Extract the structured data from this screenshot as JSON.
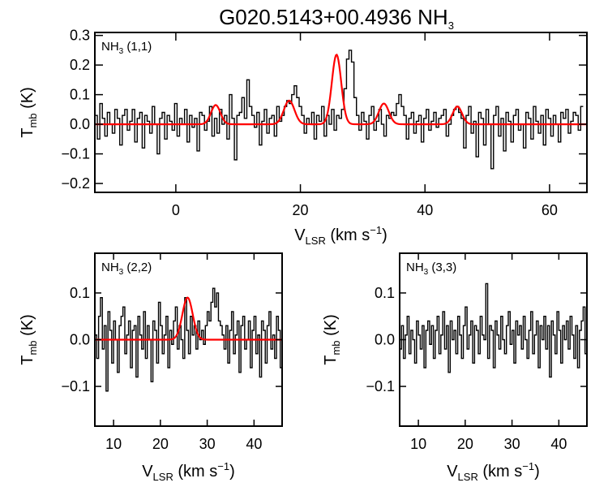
{
  "figure": {
    "title_main": "G020.5143+00.4936 NH",
    "title_sub": "3"
  },
  "colors": {
    "data": "#000000",
    "fit": "#ff0000",
    "axis": "#000000"
  },
  "chart_data": [
    {
      "id": "nh3-11",
      "type": "line",
      "panel_label": {
        "main": "NH",
        "sub": "3",
        "rest": " (1,1)"
      },
      "xlabel": {
        "main": "V",
        "sub": "LSR",
        "rest": " (km s",
        "sup": "−1",
        "end": ")"
      },
      "ylabel": {
        "main": "T",
        "sub": "mb",
        "rest": " (K)"
      },
      "xlim": [
        -13,
        66
      ],
      "ylim": [
        -0.23,
        0.31
      ],
      "xticks": [
        0,
        20,
        40,
        60
      ],
      "yticks": [
        -0.2,
        -0.1,
        0.0,
        0.1,
        0.2,
        0.3
      ],
      "ytick_labels": [
        "−0.2",
        "−0.1",
        "0.0",
        "0.1",
        "0.2",
        "0.3"
      ],
      "xtick_labels": [
        "0",
        "20",
        "40",
        "60"
      ],
      "series": [
        {
          "name": "observed spectrum",
          "style": "histogram",
          "x_start": -13,
          "x_step": 0.4,
          "values": [
            0.03,
            -0.05,
            0.07,
            0.02,
            -0.04,
            0.04,
            0.0,
            -0.03,
            0.05,
            0.02,
            -0.07,
            0.03,
            0.05,
            -0.02,
            0.01,
            0.05,
            -0.06,
            0.02,
            0.04,
            -0.08,
            0.03,
            0.01,
            -0.03,
            0.06,
            0.0,
            -0.1,
            0.02,
            0.04,
            -0.05,
            0.03,
            0.01,
            -0.02,
            0.07,
            -0.04,
            0.02,
            0.0,
            0.05,
            -0.06,
            0.03,
            -0.01,
            0.02,
            -0.09,
            0.04,
            0.03,
            -0.02,
            0.01,
            0.06,
            -0.04,
            0.02,
            -0.03,
            0.05,
            0.0,
            0.03,
            -0.05,
            0.1,
            0.02,
            -0.12,
            0.03,
            0.04,
            0.09,
            0.02,
            0.15,
            0.06,
            0.03,
            -0.01,
            0.04,
            -0.07,
            0.01,
            0.05,
            -0.03,
            0.02,
            0.03,
            -0.04,
            0.06,
            0.01,
            0.03,
            0.06,
            0.08,
            0.07,
            0.1,
            0.13,
            0.09,
            0.06,
            0.03,
            -0.03,
            0.02,
            0.0,
            0.04,
            -0.05,
            0.03,
            0.01,
            0.06,
            -0.04,
            0.03,
            0.0,
            0.05,
            -0.02,
            0.03,
            0.02,
            0.05,
            0.12,
            0.22,
            0.25,
            0.21,
            0.09,
            0.03,
            -0.02,
            0.04,
            0.01,
            -0.05,
            0.03,
            0.06,
            -0.02,
            0.01,
            0.05,
            0.0,
            -0.04,
            0.03,
            0.02,
            0.04,
            0.03,
            0.07,
            0.1,
            0.06,
            0.03,
            -0.05,
            0.02,
            0.04,
            -0.03,
            0.01,
            0.03,
            -0.06,
            0.02,
            0.05,
            -0.02,
            0.01,
            0.04,
            -0.01,
            0.02,
            0.03,
            0.05,
            -0.04,
            0.0,
            0.03,
            0.05,
            0.06,
            0.04,
            0.02,
            -0.08,
            0.03,
            0.06,
            -0.03,
            0.01,
            -0.11,
            0.04,
            0.02,
            -0.07,
            0.05,
            0.0,
            -0.15,
            0.03,
            0.06,
            -0.04,
            0.02,
            -0.09,
            0.04,
            0.01,
            -0.06,
            0.03,
            0.05,
            -0.02,
            0.0,
            -0.08,
            0.04,
            0.02,
            -0.05,
            0.06,
            0.01,
            -0.03,
            0.03,
            -0.07,
            0.05,
            0.02,
            -0.04,
            0.03,
            0.0,
            -0.06,
            0.04,
            0.02,
            0.05,
            -0.03,
            0.01,
            0.04,
            0.03,
            -0.02,
            0.06
          ]
        },
        {
          "name": "hyperfine fit",
          "style": "gaussians",
          "components": [
            {
              "center": 6.4,
              "amp": 0.065,
              "sigma": 0.75
            },
            {
              "center": 18.2,
              "amp": 0.08,
              "sigma": 0.85
            },
            {
              "center": 25.8,
              "amp": 0.235,
              "sigma": 0.75
            },
            {
              "center": 33.4,
              "amp": 0.07,
              "sigma": 0.8
            },
            {
              "center": 45.2,
              "amp": 0.06,
              "sigma": 0.75
            }
          ]
        }
      ]
    },
    {
      "id": "nh3-22",
      "type": "line",
      "panel_label": {
        "main": "NH",
        "sub": "3",
        "rest": " (2,2)"
      },
      "xlabel": {
        "main": "V",
        "sub": "LSR",
        "rest": " (km s",
        "sup": "−1",
        "end": ")"
      },
      "ylabel": {
        "main": "T",
        "sub": "mb",
        "rest": " (K)"
      },
      "xlim": [
        6,
        46
      ],
      "ylim": [
        -0.185,
        0.185
      ],
      "xticks": [
        10,
        20,
        30,
        40
      ],
      "yticks": [
        -0.1,
        0.0,
        0.1
      ],
      "ytick_labels": [
        "−0.1",
        "0.0",
        "0.1"
      ],
      "xtick_labels": [
        "10",
        "20",
        "30",
        "40"
      ],
      "series": [
        {
          "name": "observed spectrum",
          "style": "histogram",
          "x_start": 6,
          "x_step": 0.4,
          "values": [
            0.01,
            -0.04,
            0.05,
            0.09,
            -0.02,
            0.03,
            -0.11,
            0.06,
            0.02,
            -0.05,
            0.04,
            0.0,
            -0.07,
            0.03,
            0.05,
            0.07,
            -0.03,
            0.01,
            0.04,
            -0.06,
            0.02,
            0.03,
            -0.08,
            0.05,
            0.01,
            -0.02,
            0.06,
            -0.04,
            0.03,
            0.0,
            -0.09,
            0.04,
            0.02,
            -0.05,
            0.08,
            0.03,
            -0.03,
            0.01,
            0.05,
            -0.06,
            0.02,
            -0.01,
            0.04,
            0.07,
            -0.02,
            0.03,
            0.0,
            -0.04,
            0.09,
            0.02,
            -0.03,
            0.05,
            0.01,
            0.03,
            -0.02,
            0.04,
            0.0,
            0.02,
            -0.01,
            0.03,
            0.06,
            0.04,
            0.08,
            0.11,
            0.07,
            0.1,
            0.04,
            0.03,
            0.01,
            -0.02,
            0.03,
            -0.05,
            0.02,
            0.06,
            -0.03,
            0.01,
            0.04,
            -0.07,
            0.03,
            0.05,
            -0.02,
            0.0,
            0.04,
            -0.06,
            0.02,
            0.05,
            -0.03,
            0.01,
            -0.08,
            0.04,
            0.02,
            -0.05,
            0.03,
            0.06,
            -0.02,
            0.01,
            -0.04,
            0.05,
            0.02,
            -0.06
          ]
        },
        {
          "name": "gaussian fit",
          "style": "gaussians",
          "components": [
            {
              "center": 25.8,
              "amp": 0.09,
              "sigma": 1.1
            }
          ]
        }
      ]
    },
    {
      "id": "nh3-33",
      "type": "line",
      "panel_label": {
        "main": "NH",
        "sub": "3",
        "rest": " (3,3)"
      },
      "xlabel": {
        "main": "V",
        "sub": "LSR",
        "rest": " (km s",
        "sup": "−1",
        "end": ")"
      },
      "ylabel": {
        "main": "T",
        "sub": "mb",
        "rest": " (K)"
      },
      "xlim": [
        6,
        46
      ],
      "ylim": [
        -0.185,
        0.185
      ],
      "xticks": [
        10,
        20,
        30,
        40
      ],
      "yticks": [
        -0.1,
        0.0,
        0.1
      ],
      "ytick_labels": [
        "−0.1",
        "0.0",
        "0.1"
      ],
      "xtick_labels": [
        "10",
        "20",
        "30",
        "40"
      ],
      "series": [
        {
          "name": "observed spectrum",
          "style": "histogram",
          "x_start": 6,
          "x_step": 0.4,
          "values": [
            -0.02,
            0.03,
            -0.04,
            0.01,
            0.05,
            -0.03,
            0.02,
            0.0,
            -0.05,
            0.04,
            0.01,
            -0.02,
            0.03,
            -0.06,
            0.02,
            0.04,
            -0.01,
            0.03,
            -0.04,
            0.02,
            0.05,
            -0.03,
            0.01,
            0.06,
            -0.02,
            0.03,
            -0.07,
            0.04,
            0.0,
            0.02,
            -0.03,
            0.05,
            0.01,
            -0.04,
            0.03,
            0.07,
            -0.02,
            0.01,
            0.04,
            -0.05,
            0.03,
            0.02,
            -0.03,
            0.05,
            0.01,
            0.0,
            0.12,
            -0.04,
            0.03,
            0.02,
            -0.06,
            0.04,
            0.01,
            -0.02,
            0.05,
            0.0,
            -0.03,
            0.03,
            0.06,
            -0.01,
            0.02,
            -0.05,
            0.04,
            0.01,
            0.03,
            -0.02,
            0.05,
            0.0,
            -0.04,
            0.02,
            0.06,
            -0.03,
            0.01,
            0.04,
            -0.06,
            0.03,
            0.0,
            0.05,
            -0.02,
            0.03,
            -0.08,
            0.04,
            0.01,
            -0.03,
            0.06,
            0.02,
            -0.05,
            0.03,
            0.0,
            0.04,
            -0.02,
            0.05,
            0.01,
            -0.04,
            0.03,
            -0.06,
            0.02,
            0.04,
            0.07,
            -0.03
          ]
        }
      ]
    }
  ]
}
